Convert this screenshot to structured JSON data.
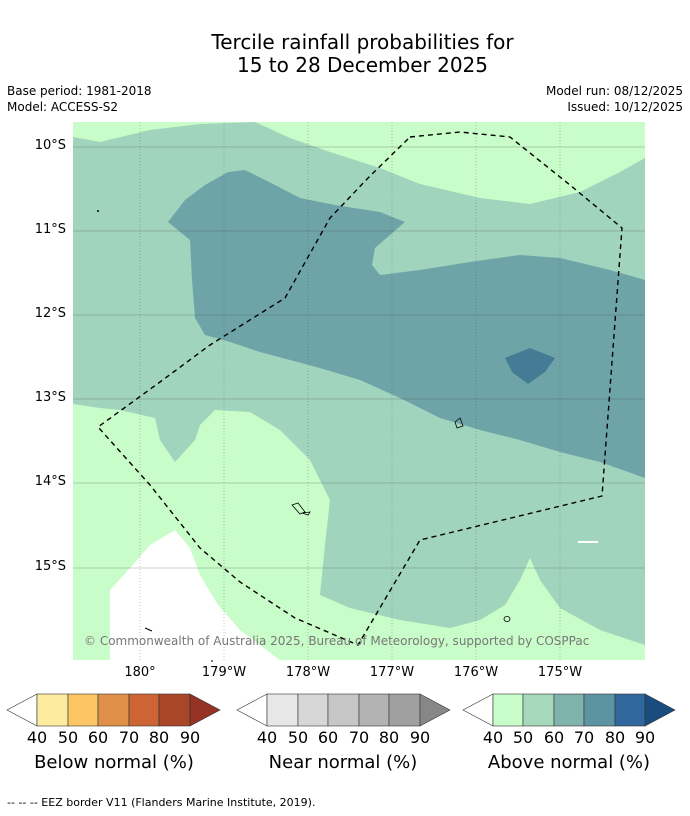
{
  "title": {
    "line1": "Tercile rainfall probabilities for",
    "line2": "15 to 28 December 2025"
  },
  "meta": {
    "base_period": "Base period: 1981-2018",
    "model": "Model: ACCESS-S2",
    "model_run": "Model run: 08/12/2025",
    "issued": "Issued: 10/12/2025"
  },
  "map": {
    "lat_ticks": [
      "10°S",
      "11°S",
      "12°S",
      "13°S",
      "14°S",
      "15°S"
    ],
    "lon_ticks": [
      "180°",
      "179°W",
      "178°W",
      "177°W",
      "176°W",
      "175°W"
    ],
    "copyright": "© Commonwealth of Australia 2025, Bureau of Meteorology, supported by COSPPac",
    "colors": {
      "above_40_50": "#c8fcc8",
      "above_50_60": "#a0d4bc",
      "above_60_70": "#6ea4a8",
      "above_70_80": "#437c94",
      "no_signal": "#ffffff"
    }
  },
  "colorbars": [
    {
      "title": "Below normal (%)",
      "labels": [
        "40",
        "50",
        "60",
        "70",
        "80",
        "90"
      ],
      "colors": [
        "#ffffff",
        "#fdeba0",
        "#fdc664",
        "#e09048",
        "#cd6434",
        "#aa4628",
        "#953225"
      ]
    },
    {
      "title": "Near normal (%)",
      "labels": [
        "40",
        "50",
        "60",
        "70",
        "80",
        "90"
      ],
      "colors": [
        "#ffffff",
        "#e7e7e7",
        "#d7d7d7",
        "#c6c6c6",
        "#b3b3b3",
        "#a0a0a0",
        "#878787"
      ]
    },
    {
      "title": "Above normal (%)",
      "labels": [
        "40",
        "50",
        "60",
        "70",
        "80",
        "90"
      ],
      "colors": [
        "#ffffff",
        "#c8fcc8",
        "#a6d8bc",
        "#7fb4ac",
        "#5c94a4",
        "#30679c",
        "#194d80"
      ]
    }
  ],
  "footnote": "--  --  -- EEZ border V11 (Flanders Marine Institute, 2019)."
}
